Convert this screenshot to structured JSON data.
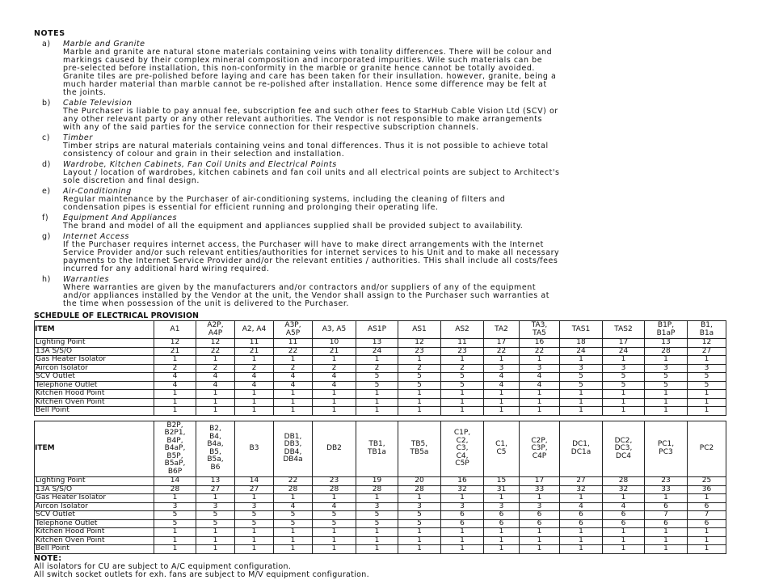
{
  "notes": {
    "heading": "NOTES",
    "items": [
      {
        "letter": "a)",
        "title": "Marble and Granite",
        "lines": [
          "Marble and granite are natural stone materials containing veins with tonality differences. There will be colour and",
          "markings caused by their complex mineral composition and incorporated impurities. Wile such materials can be",
          "pre-selected before installation, this non-conformity in the marble or granite hence cannot be totally avoided.",
          "Granite tiles are pre-polished before laying and care has been taken for their insullation. however, granite, being a",
          "much harder material than marble cannot be re-polished after installation. Hence some difference may be felt at",
          "the joints."
        ]
      },
      {
        "letter": "b)",
        "title": "Cable Television",
        "lines": [
          "The Purchaser is liable to pay annual fee, subscription fee and such other fees to StarHub Cable Vision Ltd (SCV) or",
          "any other relevant party or any other relevant authorities. The Vendor is not responsible to make arrangements",
          "with any of the said parties for the service connection for their respective subscription channels."
        ]
      },
      {
        "letter": "c)",
        "title": "Timber",
        "lines": [
          "Timber strips are natural materials containing veins and tonal differences. Thus it is not possible to achieve total",
          "consistency of colour and grain in their selection and installation."
        ]
      },
      {
        "letter": "d)",
        "title": "Wardrobe, Kitchen Cabinets, Fan Coil Units and Electrical Points",
        "lines": [
          "Layout / location of wardrobes, kitchen cabinets and fan coil units and all electrical points are subject to Architect's",
          "sole discretion and final design."
        ]
      },
      {
        "letter": "e)",
        "title": "Air-Conditioning",
        "lines": [
          "Regular maintenance by the Purchaser of air-conditioning systems, including the cleaning of filters and",
          "condensation pipes is essential for efficient running and prolonging their operating life."
        ]
      },
      {
        "letter": "f)",
        "title": "Equipment And Appliances",
        "lines": [
          "The brand and model of all the equipment and appliances supplied shall be provided subject to availability."
        ]
      },
      {
        "letter": "g)",
        "title": "Internet Access",
        "lines": [
          "If the Purchaser requires internet access, the Purchaser will have to make direct arrangements with the Internet",
          "Service Provider and/or such relevant entities/authorities for internet services to his Unit and to make all necessary",
          "payments to the Internet Service Provider and/or the relevant entities / authorities. THis shall include all costs/fees",
          "incurred for any additional hard wiring required."
        ]
      },
      {
        "letter": "h)",
        "title": "Warranties",
        "lines": [
          "Where warranties are given by the manufacturers and/or contractors and/or suppliers of any of the equipment",
          "and/or appliances installed by the Vendor at the unit, the Vendor shall assign to the Purchaser such warranties at",
          "the time when possession of the unit is delivered to the Purchaser."
        ]
      }
    ]
  },
  "schedule": {
    "title": "SCHEDULE OF ELECTRICAL PROVISION",
    "item_header": "ITEM",
    "row_labels": [
      "Lighting Point",
      "13A S/S/O",
      "Gas Heater Isolator",
      "Aircon Isolator",
      "SCV Outlet",
      "Telephone Outlet",
      "Kitchen Hood Point",
      "Kitchen Oven Point",
      "Bell Point"
    ],
    "tables": [
      {
        "columns": [
          [
            "A1"
          ],
          [
            "A2P,",
            "A4P"
          ],
          [
            "A2, A4"
          ],
          [
            "A3P,",
            "A5P"
          ],
          [
            "A3, A5"
          ],
          [
            "AS1P"
          ],
          [
            "AS1"
          ],
          [
            "AS2"
          ],
          [
            "TA2"
          ],
          [
            "TA3,",
            "TA5"
          ],
          [
            "TAS1"
          ],
          [
            "TAS2"
          ],
          [
            "B1P,",
            "B1aP"
          ],
          [
            "B1,",
            "B1a"
          ]
        ],
        "rows": [
          [
            12,
            12,
            11,
            11,
            10,
            13,
            12,
            11,
            17,
            16,
            18,
            17,
            13,
            12
          ],
          [
            21,
            22,
            21,
            22,
            21,
            24,
            23,
            23,
            22,
            22,
            24,
            24,
            28,
            27
          ],
          [
            1,
            1,
            1,
            1,
            1,
            1,
            1,
            1,
            1,
            1,
            1,
            1,
            1,
            1
          ],
          [
            2,
            2,
            2,
            2,
            2,
            2,
            2,
            2,
            3,
            3,
            3,
            3,
            3,
            3
          ],
          [
            4,
            4,
            4,
            4,
            4,
            5,
            5,
            5,
            4,
            4,
            5,
            5,
            5,
            5
          ],
          [
            4,
            4,
            4,
            4,
            4,
            5,
            5,
            5,
            4,
            4,
            5,
            5,
            5,
            5
          ],
          [
            1,
            1,
            1,
            1,
            1,
            1,
            1,
            1,
            1,
            1,
            1,
            1,
            1,
            1
          ],
          [
            1,
            1,
            1,
            1,
            1,
            1,
            1,
            1,
            1,
            1,
            1,
            1,
            1,
            1
          ],
          [
            1,
            1,
            1,
            1,
            1,
            1,
            1,
            1,
            1,
            1,
            1,
            1,
            1,
            1
          ]
        ]
      },
      {
        "columns": [
          [
            "B2P,",
            "B2P1,",
            "B4P,",
            "B4aP,",
            "B5P,",
            "B5aP,",
            "B6P"
          ],
          [
            "B2,",
            "B4,",
            "B4a,",
            "B5,",
            "B5a,",
            "B6"
          ],
          [
            "B3"
          ],
          [
            "DB1,",
            "DB3,",
            "DB4,",
            "DB4a"
          ],
          [
            "DB2"
          ],
          [
            "TB1,",
            "TB1a"
          ],
          [
            "TB5,",
            "TB5a"
          ],
          [
            "C1P,",
            "C2,",
            "C3,",
            "C4,",
            "C5P"
          ],
          [
            "C1,",
            "C5"
          ],
          [
            "C2P,",
            "C3P,",
            "C4P"
          ],
          [
            "DC1,",
            "DC1a"
          ],
          [
            "DC2,",
            "DC3,",
            "DC4"
          ],
          [
            "PC1,",
            "PC3"
          ],
          [
            "PC2"
          ]
        ],
        "rows": [
          [
            14,
            13,
            14,
            22,
            23,
            19,
            20,
            16,
            15,
            17,
            27,
            28,
            23,
            25
          ],
          [
            28,
            27,
            27,
            28,
            28,
            28,
            28,
            32,
            31,
            33,
            32,
            32,
            33,
            36
          ],
          [
            1,
            1,
            1,
            1,
            1,
            1,
            1,
            1,
            1,
            1,
            1,
            1,
            1,
            1
          ],
          [
            3,
            3,
            3,
            4,
            4,
            3,
            3,
            3,
            3,
            3,
            4,
            4,
            6,
            6
          ],
          [
            5,
            5,
            5,
            5,
            5,
            5,
            5,
            6,
            6,
            6,
            6,
            6,
            7,
            7
          ],
          [
            5,
            5,
            5,
            5,
            5,
            5,
            5,
            6,
            6,
            6,
            6,
            6,
            6,
            6
          ],
          [
            1,
            1,
            1,
            1,
            1,
            1,
            1,
            1,
            1,
            1,
            1,
            1,
            1,
            1
          ],
          [
            1,
            1,
            1,
            1,
            1,
            1,
            1,
            1,
            1,
            1,
            1,
            1,
            1,
            1
          ],
          [
            1,
            1,
            1,
            1,
            1,
            1,
            1,
            1,
            1,
            1,
            1,
            1,
            1,
            1
          ]
        ]
      }
    ]
  },
  "footnote": {
    "heading": "NOTE:",
    "lines": [
      "All isolators for CU are subject to A/C equipment configuration.",
      "All switch socket outlets for exh. fans are subject to M/V equipment configuration."
    ]
  }
}
